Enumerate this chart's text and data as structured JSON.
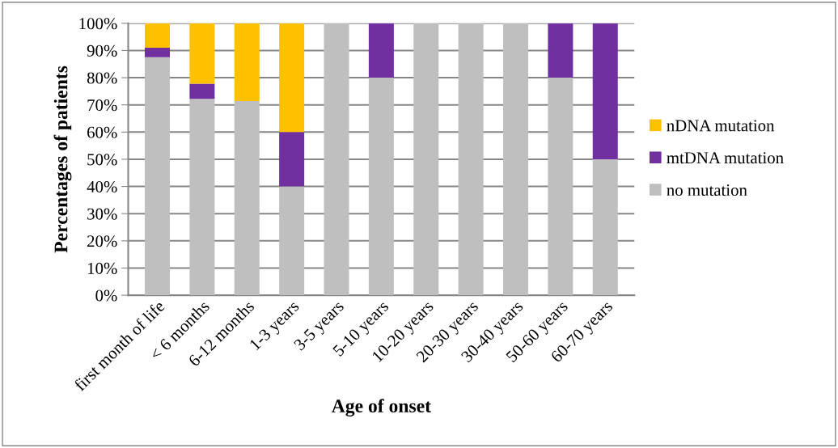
{
  "chart_data": {
    "type": "bar",
    "stacked": true,
    "xlabel": "Age of onset",
    "ylabel": "Percentages of patients",
    "categories": [
      "first month of life",
      "< 6 months",
      "6-12 months",
      "1-3 years",
      "3-5 years",
      "5-10 years",
      "10-20 years",
      "20-30 years",
      "30-40 years",
      "50-60 years",
      "60-70 years"
    ],
    "series": [
      {
        "name": "no mutation",
        "color": "#bfbfbf",
        "values": [
          87.5,
          72.2,
          71.4,
          40,
          100,
          80,
          100,
          100,
          100,
          80,
          50
        ]
      },
      {
        "name": "mtDNA mutation",
        "color": "#7030a0",
        "values": [
          3.5,
          5.6,
          0,
          20,
          0,
          20,
          0,
          0,
          0,
          20,
          50
        ]
      },
      {
        "name": "nDNA mutation",
        "color": "#ffc000",
        "values": [
          9,
          22.2,
          28.6,
          40,
          0,
          0,
          0,
          0,
          0,
          0,
          0
        ]
      }
    ],
    "ylim": [
      0,
      100
    ],
    "yticks": [
      {
        "value": 0,
        "label": "0%"
      },
      {
        "value": 10,
        "label": "10%"
      },
      {
        "value": 20,
        "label": "20%"
      },
      {
        "value": 30,
        "label": "30%"
      },
      {
        "value": 40,
        "label": "40%"
      },
      {
        "value": 50,
        "label": "50%"
      },
      {
        "value": 60,
        "label": "60%"
      },
      {
        "value": 70,
        "label": "70%"
      },
      {
        "value": 80,
        "label": "80%"
      },
      {
        "value": 90,
        "label": "90%"
      },
      {
        "value": 100,
        "label": "100%"
      }
    ],
    "grid": "y",
    "legend": "right"
  }
}
